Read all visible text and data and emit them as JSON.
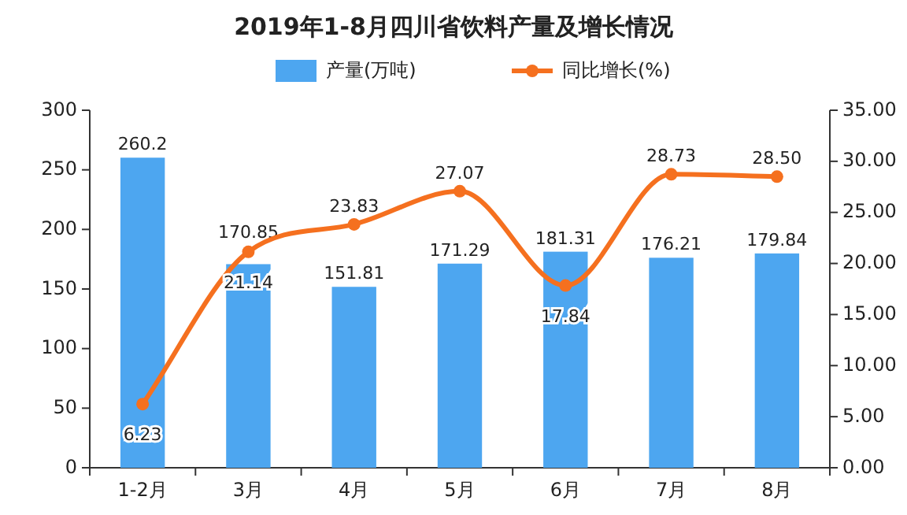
{
  "chart_data": {
    "type": "bar",
    "title": "2019年1-8月四川省饮料产量及增长情况",
    "categories": [
      "1-2月",
      "3月",
      "4月",
      "5月",
      "6月",
      "7月",
      "8月"
    ],
    "series": [
      {
        "name": "产量(万吨)",
        "color": "#4da6f0",
        "values": [
          260.2,
          170.85,
          151.81,
          171.29,
          181.31,
          176.21,
          179.84
        ]
      },
      {
        "name": "同比增长(%)",
        "type": "line",
        "axis": "y2",
        "color": "#f5701f",
        "values": [
          6.23,
          21.14,
          23.83,
          27.07,
          17.84,
          28.73,
          28.5
        ],
        "value_labels": [
          "6.23",
          "21.14",
          "23.83",
          "27.07",
          "17.84",
          "28.73",
          "28.50"
        ]
      }
    ],
    "ylim": [
      0,
      300
    ],
    "yticks": [
      0,
      50,
      100,
      150,
      200,
      250,
      300
    ],
    "y2lim": [
      0,
      35
    ],
    "y2ticks": [
      {
        "value": 0,
        "label": "0.00"
      },
      {
        "value": 5,
        "label": "5.00"
      },
      {
        "value": 10,
        "label": "10.00"
      },
      {
        "value": 15,
        "label": "15.00"
      },
      {
        "value": 20,
        "label": "20.00"
      },
      {
        "value": 25,
        "label": "25.00"
      },
      {
        "value": 30,
        "label": "30.00"
      },
      {
        "value": 35,
        "label": "35.00"
      }
    ],
    "data_labels": true,
    "legend": "top",
    "marker": "circle",
    "grid": false
  }
}
